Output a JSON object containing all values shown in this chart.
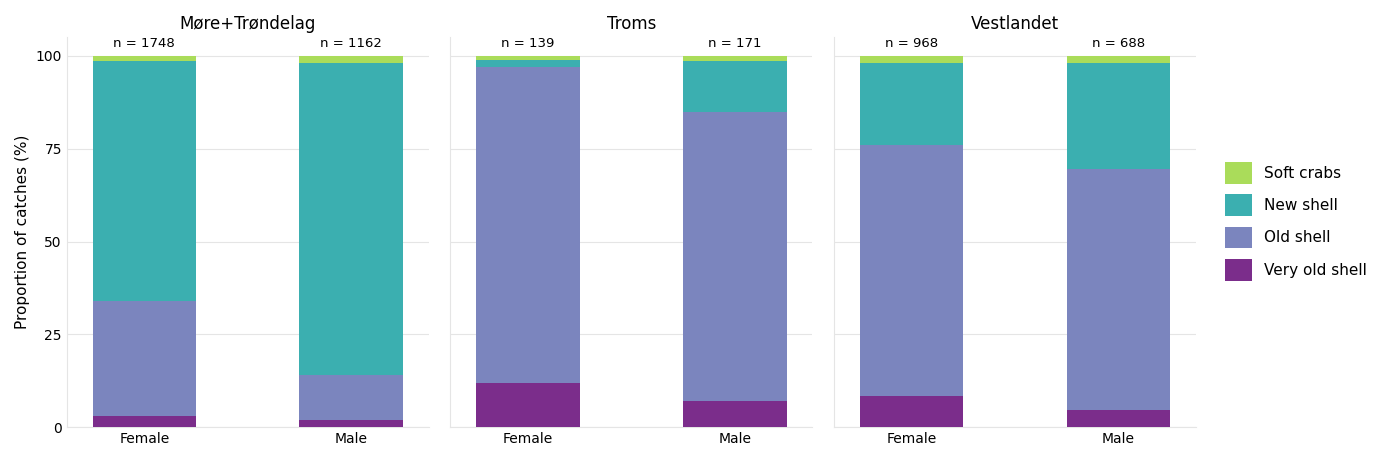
{
  "regions": [
    "Møre+Trøndelag",
    "Troms",
    "Vestlandet"
  ],
  "categories": [
    "Female",
    "Male"
  ],
  "n_values": [
    [
      1748,
      1162
    ],
    [
      139,
      171
    ],
    [
      968,
      688
    ]
  ],
  "colors": {
    "very_old_shell": "#7B2D8B",
    "old_shell": "#7B85BE",
    "new_shell": "#3BAFB0",
    "soft_crabs": "#AADC5A"
  },
  "data": {
    "Møre+Trøndelag": {
      "Female": {
        "very_old_shell": 3.0,
        "old_shell": 31.0,
        "new_shell": 64.5,
        "soft_crabs": 1.5
      },
      "Male": {
        "very_old_shell": 2.0,
        "old_shell": 12.0,
        "new_shell": 84.0,
        "soft_crabs": 2.0
      }
    },
    "Troms": {
      "Female": {
        "very_old_shell": 12.0,
        "old_shell": 85.0,
        "new_shell": 2.0,
        "soft_crabs": 1.0
      },
      "Male": {
        "very_old_shell": 7.0,
        "old_shell": 78.0,
        "new_shell": 13.5,
        "soft_crabs": 1.5
      }
    },
    "Vestlandet": {
      "Female": {
        "very_old_shell": 8.5,
        "old_shell": 67.5,
        "new_shell": 22.0,
        "soft_crabs": 2.0
      },
      "Male": {
        "very_old_shell": 4.5,
        "old_shell": 65.0,
        "new_shell": 28.5,
        "soft_crabs": 2.0
      }
    }
  },
  "ylabel": "Proportion of catches (%)",
  "title_fontsize": 12,
  "axis_fontsize": 11,
  "tick_fontsize": 10,
  "legend_fontsize": 11,
  "background_color": "#FFFFFF",
  "panel_background": "#FFFFFF",
  "grid_color": "#E5E5E5",
  "bar_width": 0.6,
  "ylim": [
    0,
    105
  ]
}
